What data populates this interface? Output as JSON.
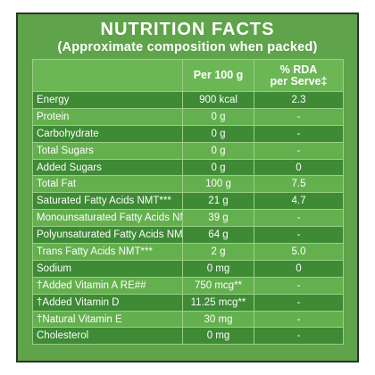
{
  "panel": {
    "title": "NUTRITION FACTS",
    "subtitle": "(Approximate composition when packed)"
  },
  "table": {
    "headers": {
      "per100": "Per 100 g",
      "rda_line1": "% RDA",
      "rda_line2": "per Serve‡"
    },
    "rows": [
      {
        "name": "Energy",
        "per100": "900 kcal",
        "rda": "2.3",
        "indent": false
      },
      {
        "name": "Protein",
        "per100": "0 g",
        "rda": "-",
        "indent": false
      },
      {
        "name": "Carbohydrate",
        "per100": "0 g",
        "rda": "-",
        "indent": false
      },
      {
        "name": "Total Sugars",
        "per100": "0 g",
        "rda": "-",
        "indent": false
      },
      {
        "name": "Added Sugars",
        "per100": "0 g",
        "rda": "0",
        "indent": false
      },
      {
        "name": "Total Fat",
        "per100": "100 g",
        "rda": "7.5",
        "indent": false
      },
      {
        "name": "Saturated Fatty Acids NMT***",
        "per100": "21 g",
        "rda": "4.7",
        "indent": true
      },
      {
        "name": "Monounsaturated Fatty Acids NMT***",
        "per100": "39 g",
        "rda": "-",
        "indent": true
      },
      {
        "name": "Polyunsaturated Fatty Acids NMT***",
        "per100": "64 g",
        "rda": "-",
        "indent": true
      },
      {
        "name": "Trans Fatty Acids NMT***",
        "per100": "2 g",
        "rda": "5.0",
        "indent": true
      },
      {
        "name": "Sodium",
        "per100": "0 mg",
        "rda": "0",
        "indent": false
      },
      {
        "name": "†Added Vitamin A RE##",
        "per100": "750 mcg**",
        "rda": "-",
        "indent": false
      },
      {
        "name": "†Added Vitamin D",
        "per100": "11.25 mcg**",
        "rda": "-",
        "indent": false
      },
      {
        "name": "†Natural Vitamin E",
        "per100": "30 mg",
        "rda": "-",
        "indent": false
      },
      {
        "name": "Cholesterol",
        "per100": "0 mg",
        "rda": "-",
        "indent": false
      }
    ]
  }
}
